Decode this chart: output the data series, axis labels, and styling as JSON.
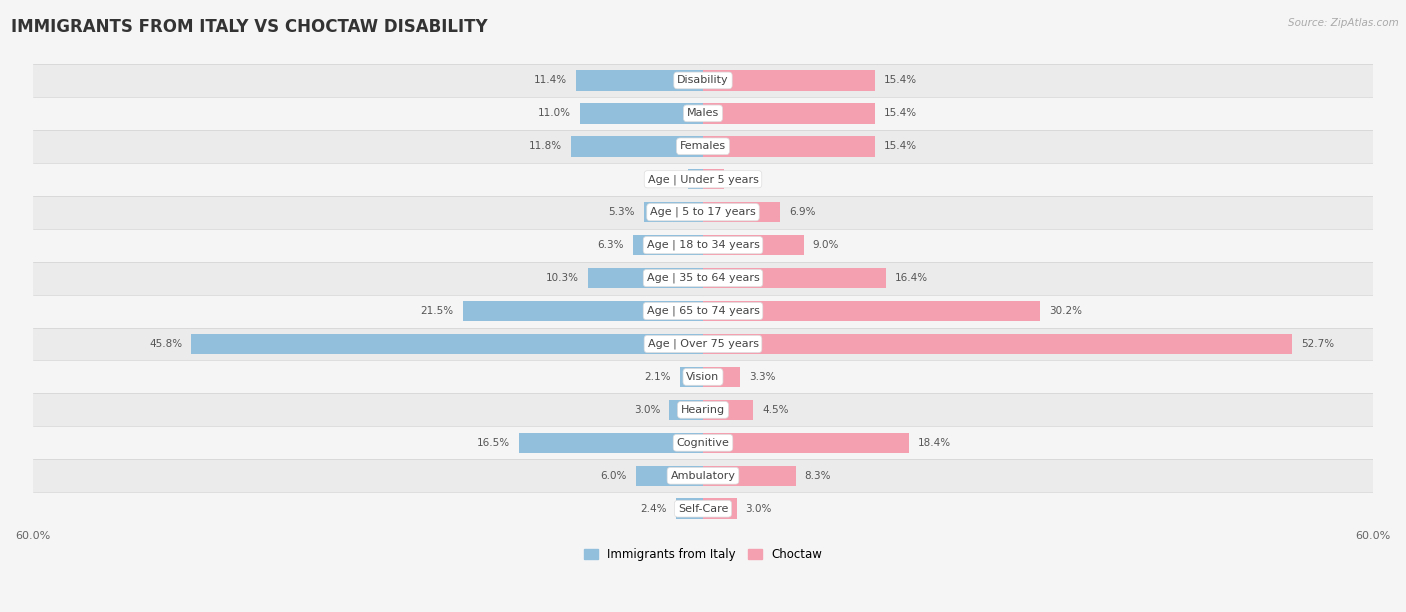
{
  "title": "IMMIGRANTS FROM ITALY VS CHOCTAW DISABILITY",
  "source": "Source: ZipAtlas.com",
  "categories": [
    "Disability",
    "Males",
    "Females",
    "Age | Under 5 years",
    "Age | 5 to 17 years",
    "Age | 18 to 34 years",
    "Age | 35 to 64 years",
    "Age | 65 to 74 years",
    "Age | Over 75 years",
    "Vision",
    "Hearing",
    "Cognitive",
    "Ambulatory",
    "Self-Care"
  ],
  "italy_values": [
    11.4,
    11.0,
    11.8,
    1.3,
    5.3,
    6.3,
    10.3,
    21.5,
    45.8,
    2.1,
    3.0,
    16.5,
    6.0,
    2.4
  ],
  "choctaw_values": [
    15.4,
    15.4,
    15.4,
    1.9,
    6.9,
    9.0,
    16.4,
    30.2,
    52.7,
    3.3,
    4.5,
    18.4,
    8.3,
    3.0
  ],
  "italy_color": "#92BFDC",
  "choctaw_color": "#F4A0B0",
  "axis_max": 60.0,
  "axis_label": "60.0%",
  "bar_height": 0.62,
  "background_color": "#f5f5f5",
  "row_bg_even": "#ebebeb",
  "row_bg_odd": "#f5f5f5",
  "title_fontsize": 12,
  "label_fontsize": 8,
  "value_fontsize": 7.5,
  "legend_italy": "Immigrants from Italy",
  "legend_choctaw": "Choctaw"
}
